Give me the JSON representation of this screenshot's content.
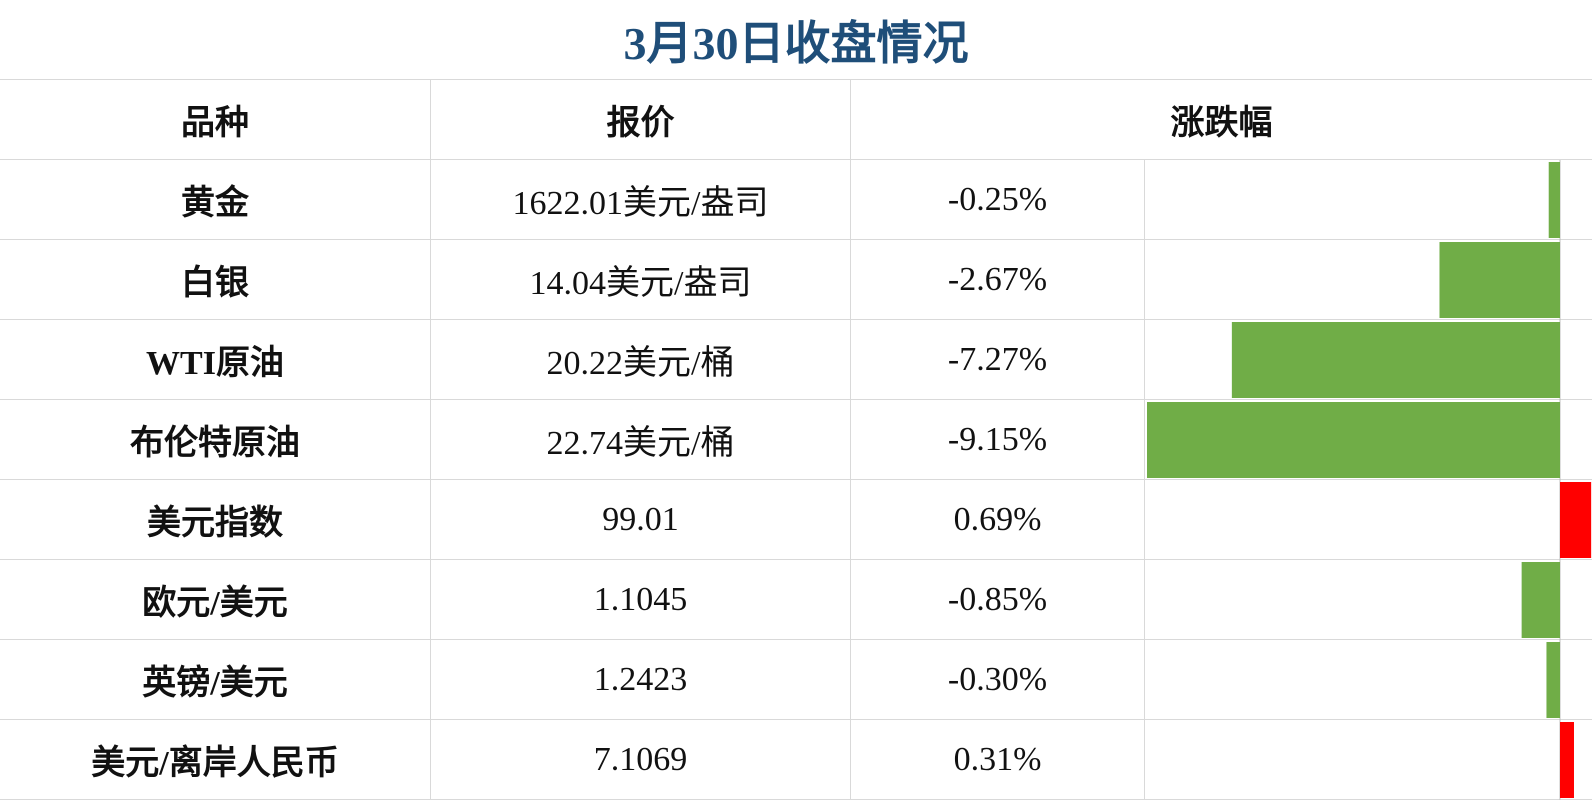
{
  "title": "3月30日收盘情况",
  "table": {
    "headers": [
      "品种",
      "报价",
      "涨跌幅"
    ],
    "rows": [
      [
        "黄金",
        "1622.01美元/盎司"
      ],
      [
        "白银",
        "14.04美元/盎司"
      ],
      [
        "WTI原油",
        "20.22美元/桶"
      ],
      [
        "布伦特原油",
        "22.74美元/桶"
      ],
      [
        "美元指数",
        "99.01"
      ],
      [
        "欧元/美元",
        "1.1045"
      ],
      [
        "英镑/美元",
        "1.2423"
      ],
      [
        "美元/离岸人民币",
        "7.1069"
      ]
    ],
    "change_values": [
      -0.25,
      -2.67,
      -7.27,
      -9.15,
      0.69,
      -0.85,
      -0.3,
      0.31
    ],
    "change_labels": [
      "-0.25%",
      "-2.67%",
      "-7.27%",
      "-9.15%",
      "0.69%",
      "-0.85%",
      "-0.30%",
      "0.31%"
    ],
    "negative_color": "#70ad47",
    "positive_color": "#ff0000"
  }
}
